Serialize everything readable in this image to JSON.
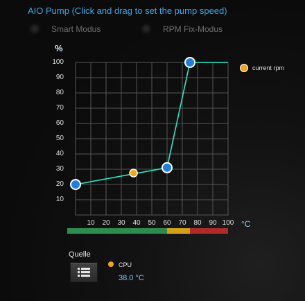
{
  "title": "AIO Pump (Click and drag to set the pump speed)",
  "modes": [
    {
      "label": "Smart Modus",
      "selected": false
    },
    {
      "label": "RPM Fix-Modus",
      "selected": false
    }
  ],
  "chart": {
    "y_unit": "%",
    "x_unit": "°C",
    "legend_label": "current rpm",
    "colors": {
      "line": "#2ee8c8",
      "grid": "#555555",
      "point": "#1e7fdc",
      "current": "#f2a51a",
      "zone_green": "#2e8b4e",
      "zone_yellow": "#d4a017",
      "zone_red": "#b02a2a"
    }
  },
  "source": {
    "label": "Quelle",
    "button_icon": "list-icon",
    "sensor_name": "CPU",
    "sensor_value": "38.0 °C"
  },
  "chart_data": {
    "type": "line",
    "x_ticks": [
      "10",
      "20",
      "30",
      "40",
      "50",
      "60",
      "70",
      "80",
      "90",
      "100"
    ],
    "y_ticks": [
      "10",
      "20",
      "30",
      "40",
      "50",
      "60",
      "70",
      "80",
      "90",
      "100"
    ],
    "xlim": [
      0,
      100
    ],
    "ylim": [
      0,
      100
    ],
    "grid": true,
    "legend_position": "right",
    "curve_points": [
      {
        "x": 0,
        "y": 20
      },
      {
        "x": 60,
        "y": 31
      },
      {
        "x": 75,
        "y": 100
      }
    ],
    "curve_extends_to": 100,
    "current": {
      "x": 38,
      "y": 27.5
    },
    "zones": [
      {
        "from": 0,
        "to": 60,
        "color": "green"
      },
      {
        "from": 60,
        "to": 75,
        "color": "yellow"
      },
      {
        "from": 75,
        "to": 100,
        "color": "red"
      }
    ]
  }
}
